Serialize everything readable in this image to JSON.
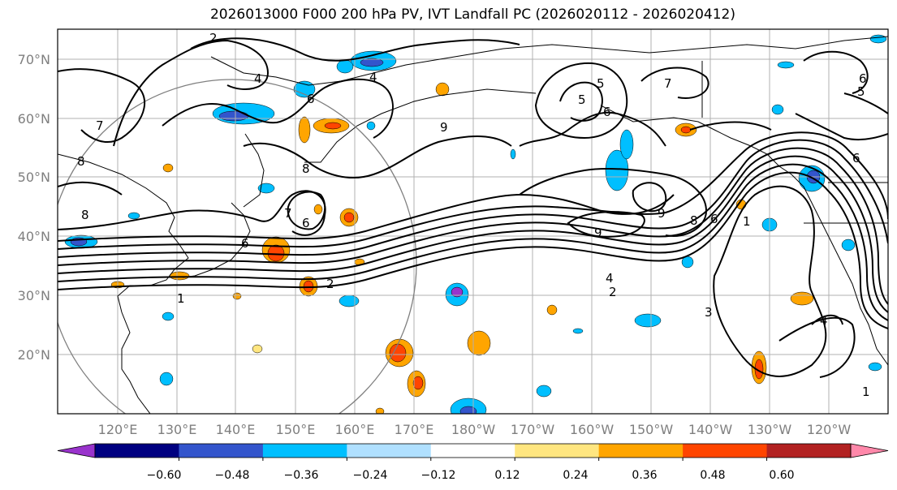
{
  "title": "2026013000 F000 200 hPa PV, IVT Landfall PC (2026020112 - 2026020412)",
  "lat_labels": [
    "70°N",
    "60°N",
    "50°N",
    "40°N",
    "30°N",
    "20°N"
  ],
  "lon_labels": [
    "120°E",
    "130°E",
    "140°E",
    "150°E",
    "160°E",
    "170°E",
    "180°W",
    "170°W",
    "160°W",
    "150°W",
    "140°W",
    "130°W",
    "120°W"
  ],
  "contour_labels": [
    "2",
    "4",
    "8",
    "6",
    "9",
    "7",
    "8",
    "8",
    "6",
    "7",
    "6",
    "2",
    "1",
    "2",
    "4",
    "9",
    "9",
    "8",
    "6",
    "1",
    "3",
    "4",
    "1",
    "5",
    "7",
    "6",
    "5",
    "4",
    "5",
    "6",
    "6"
  ],
  "colorbar": {
    "colors": [
      "#9933cc",
      "#000080",
      "#3355cc",
      "#00bfff",
      "#b0e0ff",
      "#ffffff",
      "#ffe680",
      "#ffa500",
      "#ff4500",
      "#b22222",
      "#ff88aa"
    ],
    "tick_labels": [
      "−0.60",
      "−0.48",
      "−0.36",
      "−0.24",
      "−0.12",
      "0.12",
      "0.24",
      "0.36",
      "0.48",
      "0.60"
    ]
  },
  "chart_data": {
    "type": "map-contour",
    "title": "2026013000 F000 200 hPa PV, IVT Landfall PC (2026020112 - 2026020412)",
    "fields": [
      "200 hPa PV (contours)",
      "IVT Landfall PC (shaded)"
    ],
    "lon_range": [
      "115°E",
      "115°W"
    ],
    "lat_range": [
      10,
      75
    ],
    "colorbar_levels": [
      -0.6,
      -0.48,
      -0.36,
      -0.24,
      -0.12,
      0.12,
      0.24,
      0.36,
      0.48,
      0.6
    ]
  }
}
